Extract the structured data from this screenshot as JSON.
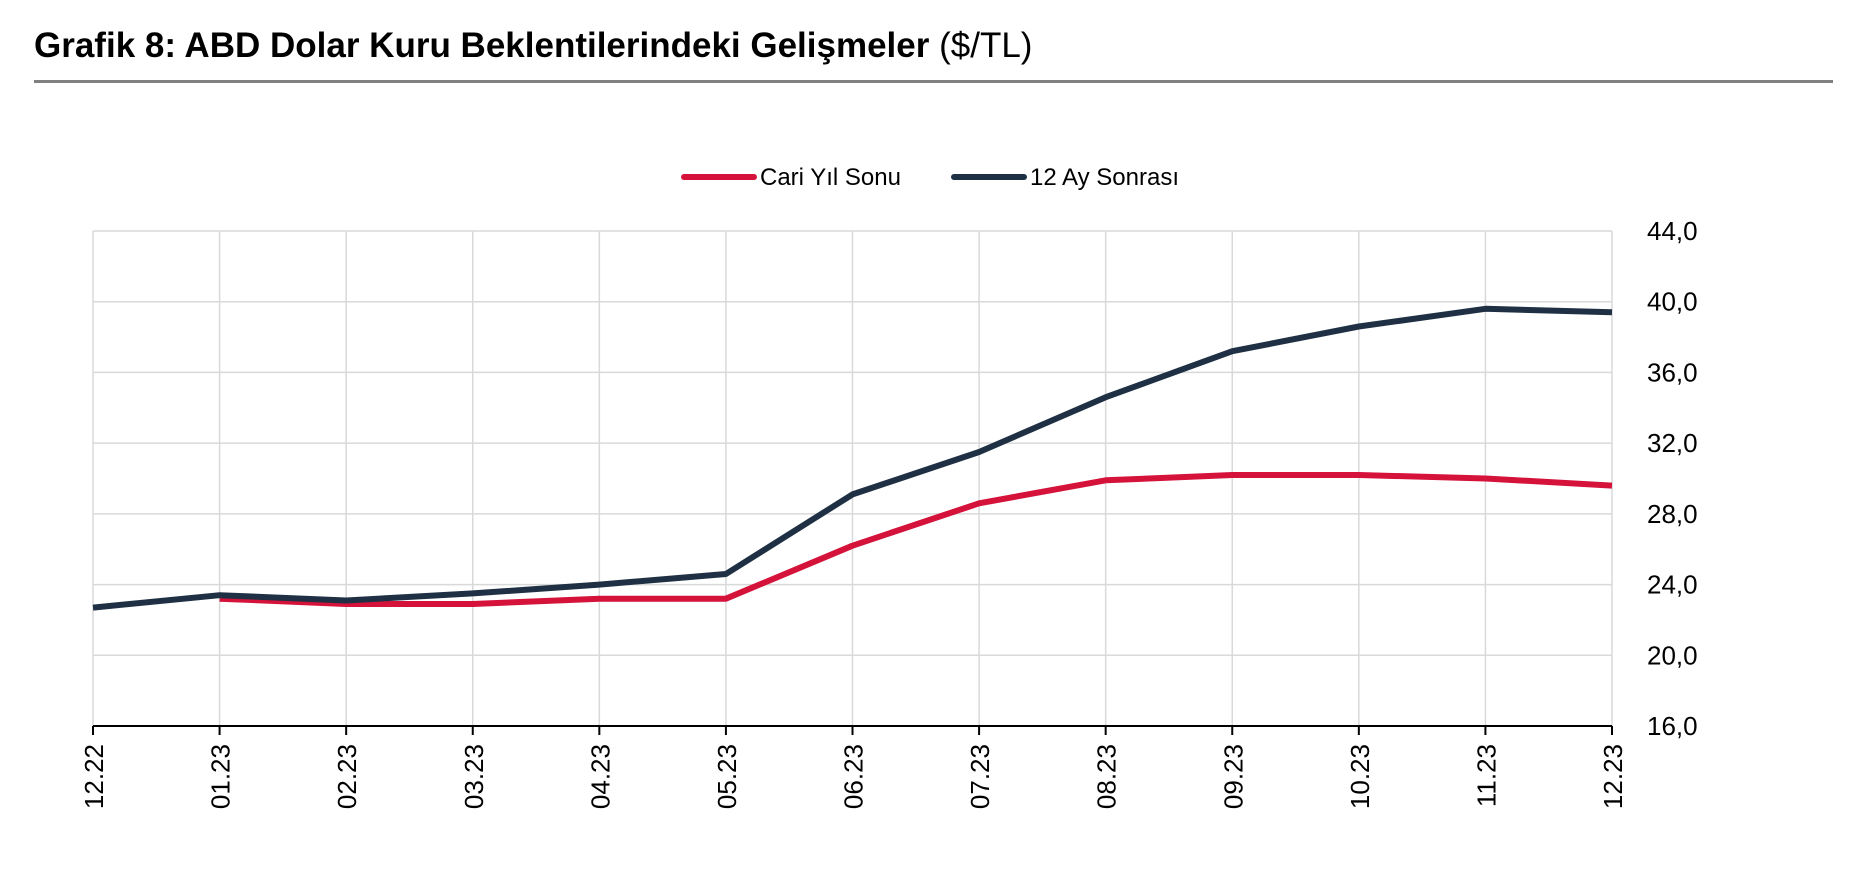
{
  "header": {
    "title": "Grafik 8: ABD Dolar Kuru Beklentilerindeki Gelişmeler",
    "unit": "($/TL)"
  },
  "chart_data": {
    "type": "line",
    "title": "Grafik 8: ABD Dolar Kuru Beklentilerindeki Gelişmeler ($/TL)",
    "xlabel": "",
    "ylabel": "",
    "categories": [
      "12.22",
      "01.23",
      "02.23",
      "03.23",
      "04.23",
      "05.23",
      "06.23",
      "07.23",
      "08.23",
      "09.23",
      "10.23",
      "11.23",
      "12.23"
    ],
    "y_ticks": [
      "16,0",
      "20,0",
      "24,0",
      "28,0",
      "32,0",
      "36,0",
      "40,0",
      "44,0"
    ],
    "ylim": [
      16,
      44
    ],
    "y_axis_side": "right",
    "grid": true,
    "legend_position": "top-center",
    "series": [
      {
        "name": "Cari Yıl Sonu",
        "color": "#d4123a",
        "values": [
          null,
          23.2,
          22.9,
          22.9,
          23.2,
          23.2,
          26.2,
          28.6,
          29.9,
          30.2,
          30.2,
          30.0,
          29.6
        ]
      },
      {
        "name": "12 Ay Sonrası",
        "color": "#1f3044",
        "values": [
          22.7,
          23.4,
          23.1,
          23.5,
          24.0,
          24.6,
          29.1,
          31.5,
          34.6,
          37.2,
          38.6,
          39.6,
          39.4
        ]
      }
    ]
  }
}
